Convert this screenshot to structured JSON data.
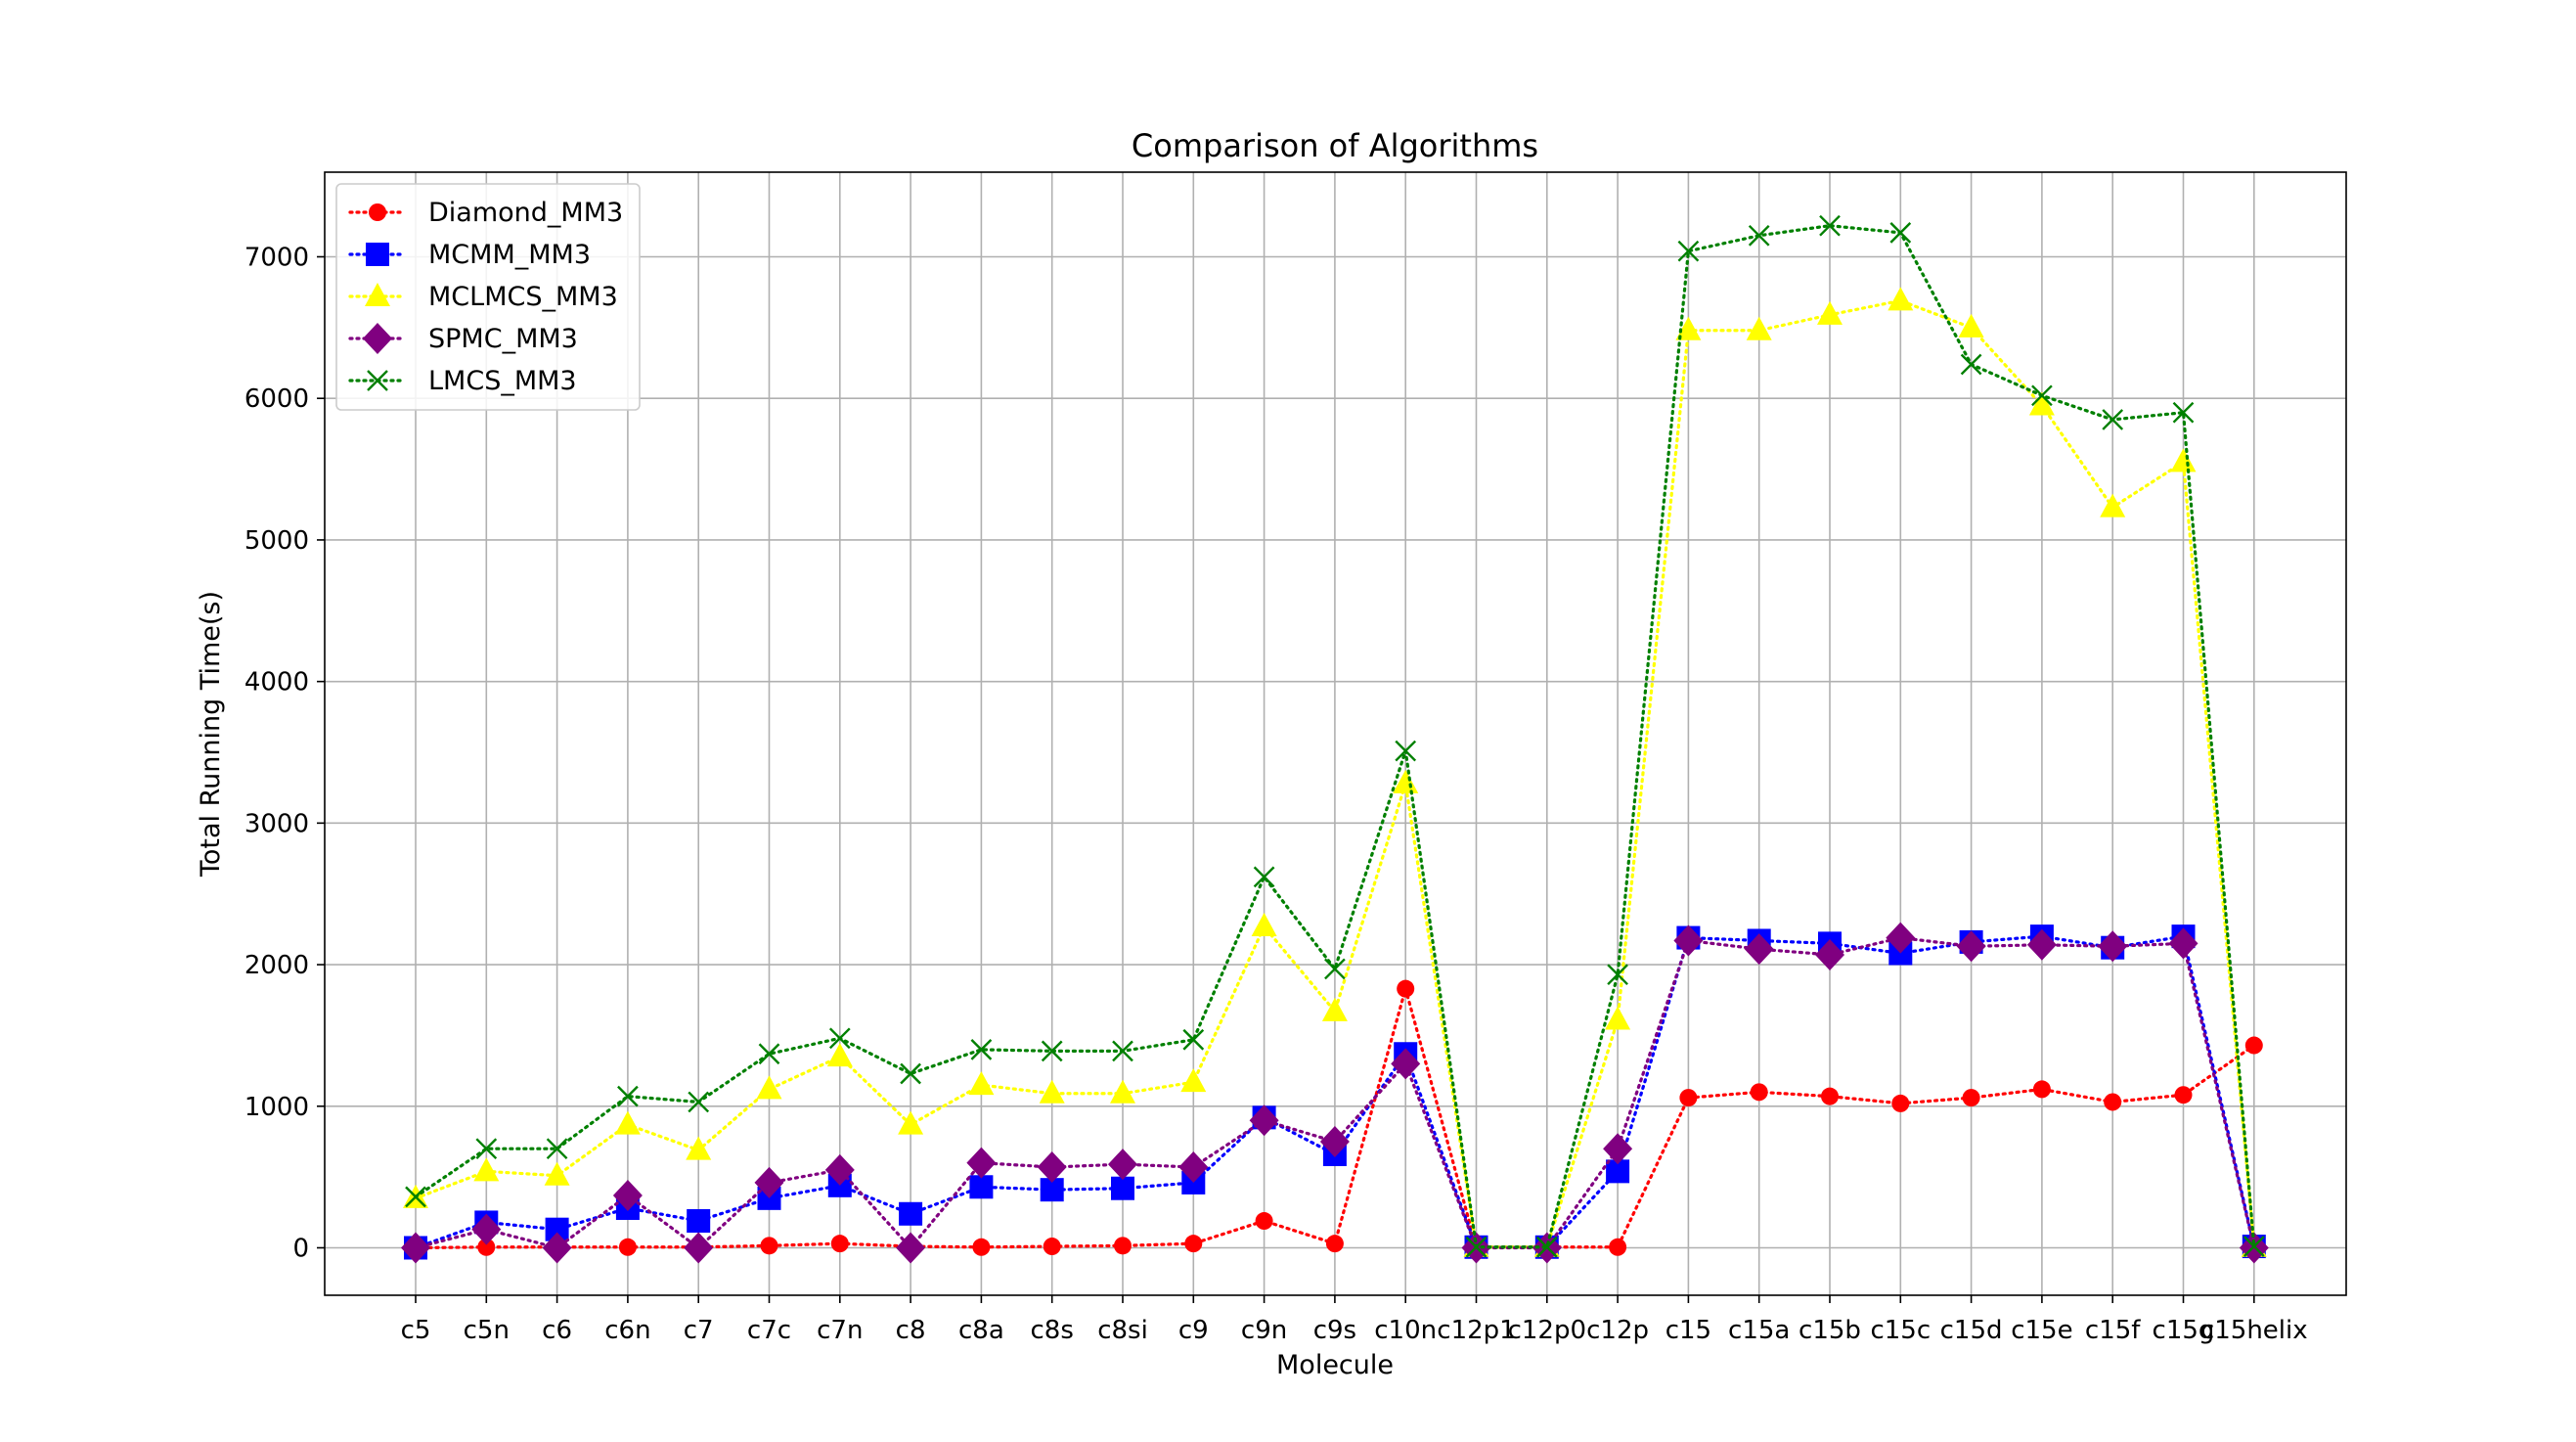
{
  "chart_data": {
    "type": "line",
    "title": "Comparison of Algorithms",
    "xlabel": "Molecule",
    "ylabel": "Total Running Time(s)",
    "categories": [
      "c5",
      "c5n",
      "c6",
      "c6n",
      "c7",
      "c7c",
      "c7n",
      "c8",
      "c8a",
      "c8s",
      "c8si",
      "c9",
      "c9n",
      "c9s",
      "c10n",
      "c12p1",
      "c12p0",
      "c12p",
      "c15",
      "c15a",
      "c15b",
      "c15c",
      "c15d",
      "c15e",
      "c15f",
      "c15g",
      "c15helix"
    ],
    "yticks": [
      0,
      1000,
      2000,
      3000,
      4000,
      5000,
      6000,
      7000
    ],
    "ylim": [
      -360,
      7560
    ],
    "grid": true,
    "legend_position": "upper-left",
    "series": [
      {
        "name": "Diamond_MM3",
        "color": "#ff0000",
        "marker": "circle",
        "values": [
          0,
          5,
          5,
          5,
          5,
          15,
          30,
          10,
          5,
          10,
          15,
          30,
          190,
          30,
          1830,
          5,
          5,
          5,
          1060,
          1100,
          1070,
          1020,
          1060,
          1120,
          1030,
          1080,
          1430
        ]
      },
      {
        "name": "MCMM_MM3",
        "color": "#0000ff",
        "marker": "square",
        "values": [
          0,
          180,
          130,
          280,
          190,
          350,
          440,
          240,
          430,
          410,
          420,
          460,
          920,
          660,
          1370,
          5,
          5,
          540,
          2190,
          2170,
          2150,
          2080,
          2160,
          2200,
          2120,
          2200,
          10
        ]
      },
      {
        "name": "MCLMCS_MM3",
        "color": "#ffff00",
        "marker": "triangle",
        "values": [
          350,
          540,
          510,
          870,
          690,
          1120,
          1350,
          870,
          1150,
          1090,
          1090,
          1170,
          2270,
          1670,
          3280,
          5,
          5,
          1610,
          6480,
          6480,
          6590,
          6690,
          6500,
          5950,
          5230,
          5550,
          5
        ]
      },
      {
        "name": "SPMC_MM3",
        "color": "#800080",
        "marker": "diamond",
        "values": [
          0,
          130,
          0,
          370,
          0,
          460,
          550,
          0,
          600,
          570,
          590,
          570,
          900,
          750,
          1300,
          0,
          0,
          700,
          2170,
          2110,
          2070,
          2190,
          2130,
          2140,
          2130,
          2150,
          0
        ]
      },
      {
        "name": "LMCS_MM3",
        "color": "#008000",
        "marker": "x",
        "values": [
          360,
          700,
          700,
          1070,
          1030,
          1370,
          1480,
          1230,
          1400,
          1390,
          1390,
          1470,
          2620,
          1970,
          3510,
          5,
          5,
          1930,
          7040,
          7150,
          7220,
          7170,
          6240,
          6020,
          5850,
          5900,
          10
        ]
      }
    ]
  }
}
